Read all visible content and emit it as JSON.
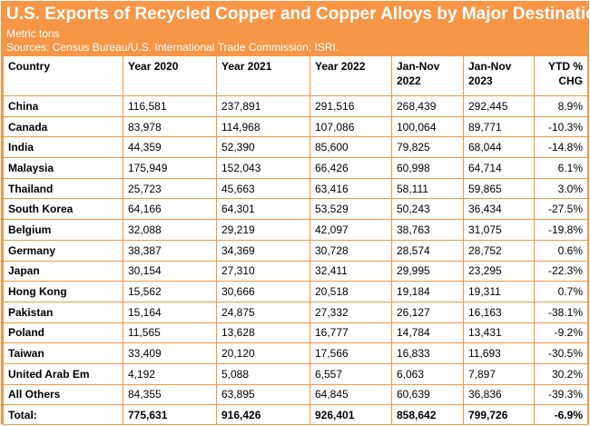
{
  "header": {
    "title": "U.S. Exports of Recycled Copper and Copper Alloys by Major Destination",
    "subtitle": "Metric tons",
    "sources": "Sources: Census Bureau/U.S. International Trade Commission; ISRI."
  },
  "colors": {
    "accent": "#f79646",
    "cell_background": "#ffffff"
  },
  "table": {
    "columns": [
      "Country",
      "Year 2020",
      "Year 2021",
      "Year 2022",
      "Jan-Nov 2022",
      "Jan-Nov 2023",
      "YTD % CHG"
    ],
    "rows": [
      [
        "China",
        "116,581",
        "237,891",
        "291,516",
        "268,439",
        "292,445",
        "8.9%"
      ],
      [
        "Canada",
        "83,978",
        "114,968",
        "107,086",
        "100,064",
        "89,771",
        "-10.3%"
      ],
      [
        "India",
        "44,359",
        "52,390",
        "85,600",
        "79,825",
        "68,044",
        "-14.8%"
      ],
      [
        "Malaysia",
        "175,949",
        "152,043",
        "66,426",
        "60,998",
        "64,714",
        "6.1%"
      ],
      [
        "Thailand",
        "25,723",
        "45,663",
        "63,416",
        "58,111",
        "59,865",
        "3.0%"
      ],
      [
        "South Korea",
        "64,166",
        "64,301",
        "53,529",
        "50,243",
        "36,434",
        "-27.5%"
      ],
      [
        "Belgium",
        "32,088",
        "29,219",
        "42,097",
        "38,763",
        "31,075",
        "-19.8%"
      ],
      [
        "Germany",
        "38,387",
        "34,369",
        "30,728",
        "28,574",
        "28,752",
        "0.6%"
      ],
      [
        "Japan",
        "30,154",
        "27,310",
        "32,411",
        "29,995",
        "23,295",
        "-22.3%"
      ],
      [
        "Hong Kong",
        "15,562",
        "30,666",
        "20,518",
        "19,184",
        "19,311",
        "0.7%"
      ],
      [
        "Pakistan",
        "15,164",
        "24,875",
        "27,332",
        "26,127",
        "16,163",
        "-38.1%"
      ],
      [
        "Poland",
        "11,565",
        "13,628",
        "16,777",
        "14,784",
        "13,431",
        "-9.2%"
      ],
      [
        "Taiwan",
        "33,409",
        "20,120",
        "17,566",
        "16,833",
        "11,693",
        "-30.5%"
      ],
      [
        "United Arab Em",
        "4,192",
        "5,088",
        "6,557",
        "6,063",
        "7,897",
        "30.2%"
      ],
      [
        "All Others",
        "84,355",
        "63,895",
        "64,845",
        "60,639",
        "36,836",
        "-39.3%"
      ]
    ],
    "total": [
      "Total:",
      "775,631",
      "916,426",
      "926,401",
      "858,642",
      "799,726",
      "-6.9%"
    ]
  }
}
